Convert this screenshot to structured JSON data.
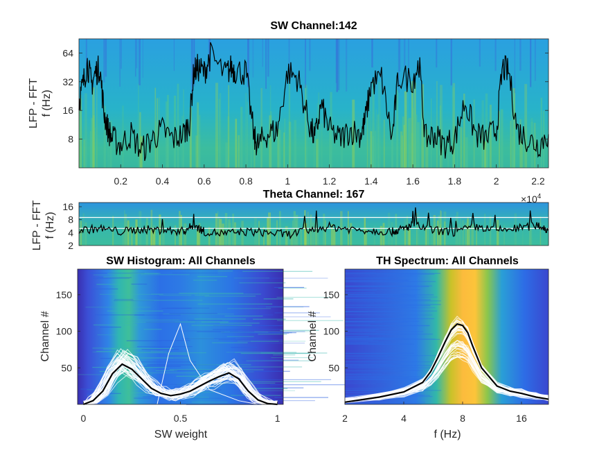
{
  "chart_data": [
    {
      "id": "sw_spectrogram",
      "type": "heatmap",
      "title": "SW Channel:142",
      "ylabel_line1": "LFP - FFT",
      "ylabel_line2": "f (Hz)",
      "yscale": "log",
      "ylim": [
        4,
        90
      ],
      "yticks": [
        "8",
        "16",
        "32",
        "64"
      ],
      "ytick_values": [
        8,
        16,
        32,
        64
      ],
      "xlim": [
        0,
        2.25
      ],
      "xticks": [
        "0.2",
        "0.4",
        "0.6",
        "0.8",
        "1",
        "1.2",
        "1.4",
        "1.6",
        "1.8",
        "2",
        "2.2"
      ],
      "xtick_values": [
        0.2,
        0.4,
        0.6,
        0.8,
        1.0,
        1.2,
        1.4,
        1.6,
        1.8,
        2.0,
        2.2
      ],
      "x_multiplier": "10",
      "x_multiplier_exp": "4",
      "overlay": {
        "name": "SW trace",
        "color": "#000000",
        "x": [
          0,
          0.02,
          0.04,
          0.06,
          0.08,
          0.1,
          0.12,
          0.14,
          0.16,
          0.2,
          0.25,
          0.3,
          0.35,
          0.4,
          0.45,
          0.5,
          0.53,
          0.55,
          0.57,
          0.6,
          0.63,
          0.7,
          0.73,
          0.75,
          0.8,
          0.84,
          0.86,
          0.9,
          0.95,
          1.0,
          1.05,
          1.1,
          1.13,
          1.16,
          1.2,
          1.25,
          1.3,
          1.35,
          1.37,
          1.4,
          1.45,
          1.5,
          1.53,
          1.6,
          1.63,
          1.66,
          1.7,
          1.75,
          1.8,
          1.85,
          1.9,
          1.95,
          2.0,
          2.03,
          2.06,
          2.1,
          2.15,
          2.2,
          2.25
        ],
        "y": [
          20,
          30,
          50,
          30,
          40,
          45,
          15,
          10,
          8,
          7,
          9,
          6,
          8,
          10,
          8,
          9,
          12,
          40,
          45,
          40,
          60,
          38,
          45,
          42,
          40,
          8,
          7,
          9,
          10,
          40,
          35,
          12,
          8,
          18,
          10,
          8,
          10,
          9,
          12,
          30,
          35,
          8,
          36,
          34,
          50,
          8,
          9,
          7,
          8,
          20,
          9,
          8,
          10,
          45,
          40,
          10,
          8,
          7,
          9
        ]
      }
    },
    {
      "id": "theta_spectrogram",
      "type": "heatmap",
      "title": "Theta Channel: 167",
      "ylabel_line1": "LFP - FFT",
      "ylabel_line2": "f (Hz)",
      "yscale": "log",
      "ylim": [
        2,
        20
      ],
      "yticks": [
        "2",
        "4",
        "8",
        "16"
      ],
      "ytick_values": [
        2,
        4,
        8,
        16
      ],
      "xlim": [
        0,
        2.25
      ],
      "hlines": [
        {
          "y": 9,
          "color": "#ffffff"
        },
        {
          "y": 5,
          "color": "#ffffff"
        }
      ],
      "overlay": {
        "name": "theta trace",
        "color": "#000000",
        "x": [
          0,
          0.1,
          0.2,
          0.3,
          0.4,
          0.5,
          0.55,
          0.6,
          0.7,
          0.8,
          0.9,
          1.0,
          1.1,
          1.2,
          1.3,
          1.4,
          1.5,
          1.55,
          1.6,
          1.7,
          1.8,
          1.9,
          2.0,
          2.1,
          2.2,
          2.25
        ],
        "y": [
          4.5,
          5,
          4.2,
          4.8,
          4.5,
          4.3,
          6,
          4.2,
          3.8,
          4.2,
          4,
          3.6,
          4.5,
          5.5,
          4.8,
          4.5,
          4.2,
          4.8,
          6,
          4.5,
          4,
          5.5,
          4.5,
          5,
          6,
          4.5
        ]
      }
    },
    {
      "id": "sw_histogram",
      "type": "line",
      "title": "SW Histogram: All Channels",
      "xlabel": "SW weight",
      "ylabel": "Channel #",
      "xlim": [
        -0.03,
        1.03
      ],
      "ylim": [
        0,
        185
      ],
      "xticks": [
        "0",
        "0.5",
        "1"
      ],
      "xtick_values": [
        0,
        0.5,
        1
      ],
      "yticks": [
        "50",
        "100",
        "150"
      ],
      "ytick_values": [
        50,
        100,
        150
      ],
      "background": "per-channel histogram heatmap",
      "mean_series": {
        "name": "mean",
        "color": "#000000",
        "x": [
          0.0,
          0.05,
          0.1,
          0.15,
          0.2,
          0.25,
          0.3,
          0.35,
          0.4,
          0.45,
          0.5,
          0.55,
          0.6,
          0.65,
          0.7,
          0.75,
          0.8,
          0.85,
          0.9,
          0.95,
          1.0
        ],
        "y": [
          0,
          5,
          18,
          42,
          55,
          48,
          35,
          22,
          15,
          12,
          14,
          18,
          25,
          32,
          38,
          43,
          35,
          18,
          6,
          1,
          0
        ]
      }
    },
    {
      "id": "th_spectrum",
      "type": "line",
      "title": "TH Spectrum: All Channels",
      "xlabel": "f (Hz)",
      "ylabel": "Channel #",
      "xscale": "log",
      "xlim": [
        2,
        22
      ],
      "ylim": [
        0,
        185
      ],
      "xticks": [
        "2",
        "4",
        "8",
        "16"
      ],
      "xtick_values": [
        2,
        4,
        8,
        16
      ],
      "yticks": [
        "50",
        "100",
        "150"
      ],
      "ytick_values": [
        50,
        100,
        150
      ],
      "background": "per-channel spectrum heatmap",
      "mean_series": {
        "name": "mean",
        "color": "#000000",
        "x": [
          2,
          3,
          4,
          5,
          5.5,
          6,
          6.5,
          7,
          7.5,
          8,
          8.5,
          9,
          10,
          12,
          14,
          16,
          19,
          22
        ],
        "y": [
          3,
          10,
          17,
          30,
          45,
          65,
          85,
          102,
          110,
          108,
          98,
          80,
          50,
          25,
          18,
          15,
          10,
          7
        ]
      }
    }
  ]
}
